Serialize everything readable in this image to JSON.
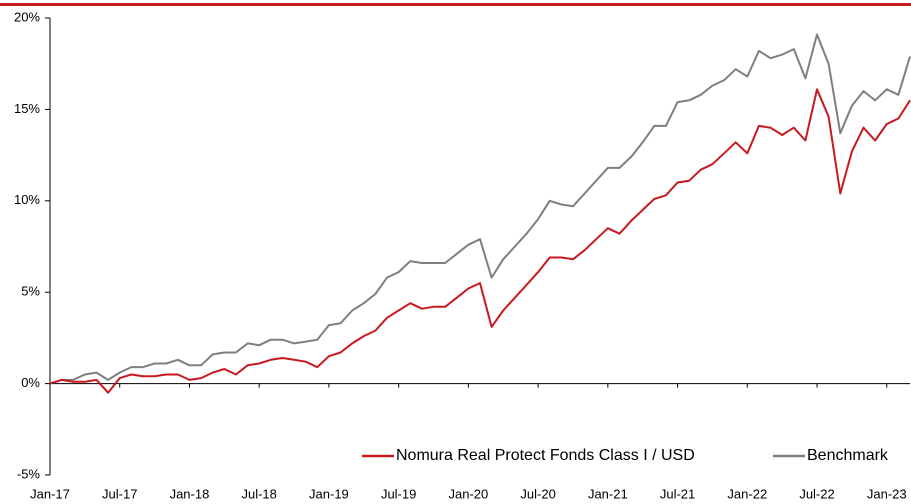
{
  "chart_data": {
    "type": "line",
    "categories": [
      "Jan-17",
      null,
      null,
      null,
      null,
      null,
      "Jul-17",
      null,
      null,
      null,
      null,
      null,
      "Jan-18",
      null,
      null,
      null,
      null,
      null,
      "Jul-18",
      null,
      null,
      null,
      null,
      null,
      "Jan-19",
      null,
      null,
      null,
      null,
      null,
      "Jul-19",
      null,
      null,
      null,
      null,
      null,
      "Jan-20",
      null,
      null,
      null,
      null,
      null,
      "Jul-20",
      null,
      null,
      null,
      null,
      null,
      "Jan-21",
      null,
      null,
      null,
      null,
      null,
      "Jul-21",
      null,
      null,
      null,
      null,
      null,
      "Jan-22",
      null,
      null,
      null,
      null,
      null,
      "Jul-22",
      null,
      null,
      null,
      null,
      null,
      "Jan-23",
      null,
      null
    ],
    "series": [
      {
        "name": "Nomura Real Protect Fonds Class I / USD",
        "color": "#c8191f",
        "values": [
          0,
          0.2,
          0.1,
          0.1,
          0.2,
          -0.5,
          0.3,
          0.5,
          0.4,
          0.4,
          0.5,
          0.5,
          0.2,
          0.3,
          0.6,
          0.8,
          0.5,
          1.0,
          1.1,
          1.3,
          1.4,
          1.3,
          1.2,
          0.9,
          1.5,
          1.7,
          2.2,
          2.6,
          2.9,
          3.6,
          4.0,
          4.4,
          4.1,
          4.2,
          4.2,
          4.7,
          5.2,
          5.5,
          3.1,
          4.0,
          4.7,
          5.4,
          6.1,
          6.9,
          6.9,
          6.8,
          7.3,
          7.9,
          8.5,
          8.2,
          8.9,
          9.5,
          10.1,
          10.3,
          11.0,
          11.1,
          11.7,
          12.0,
          12.6,
          13.2,
          12.6,
          14.1,
          14.0,
          13.6,
          14.0,
          13.3,
          16.1,
          14.6,
          10.4,
          12.7,
          14.0,
          13.3,
          14.2,
          14.5,
          15.5
        ]
      },
      {
        "name": "Benchmark",
        "color": "#7f7f7f",
        "values": [
          0,
          0.2,
          0.2,
          0.5,
          0.6,
          0.2,
          0.6,
          0.9,
          0.9,
          1.1,
          1.1,
          1.3,
          1.0,
          1.0,
          1.6,
          1.7,
          1.7,
          2.2,
          2.1,
          2.4,
          2.4,
          2.2,
          2.3,
          2.4,
          3.2,
          3.3,
          4.0,
          4.4,
          4.9,
          5.8,
          6.1,
          6.7,
          6.6,
          6.6,
          6.6,
          7.1,
          7.6,
          7.9,
          5.8,
          6.8,
          7.5,
          8.2,
          9.0,
          10.0,
          9.8,
          9.7,
          10.4,
          11.1,
          11.8,
          11.8,
          12.4,
          13.2,
          14.1,
          14.1,
          15.4,
          15.5,
          15.8,
          16.3,
          16.6,
          17.2,
          16.8,
          18.2,
          17.8,
          18.0,
          18.3,
          16.7,
          19.1,
          17.5,
          13.7,
          15.2,
          16.0,
          15.5,
          16.1,
          15.8,
          17.9
        ]
      }
    ],
    "ylim": [
      -5,
      20
    ],
    "yticks": [
      {
        "value": -5,
        "label": "-5%"
      },
      {
        "value": 0,
        "label": "0%"
      },
      {
        "value": 5,
        "label": "5%"
      },
      {
        "value": 10,
        "label": "10%"
      },
      {
        "value": 15,
        "label": "15%"
      },
      {
        "value": 20,
        "label": "20%"
      }
    ],
    "grid": false
  }
}
